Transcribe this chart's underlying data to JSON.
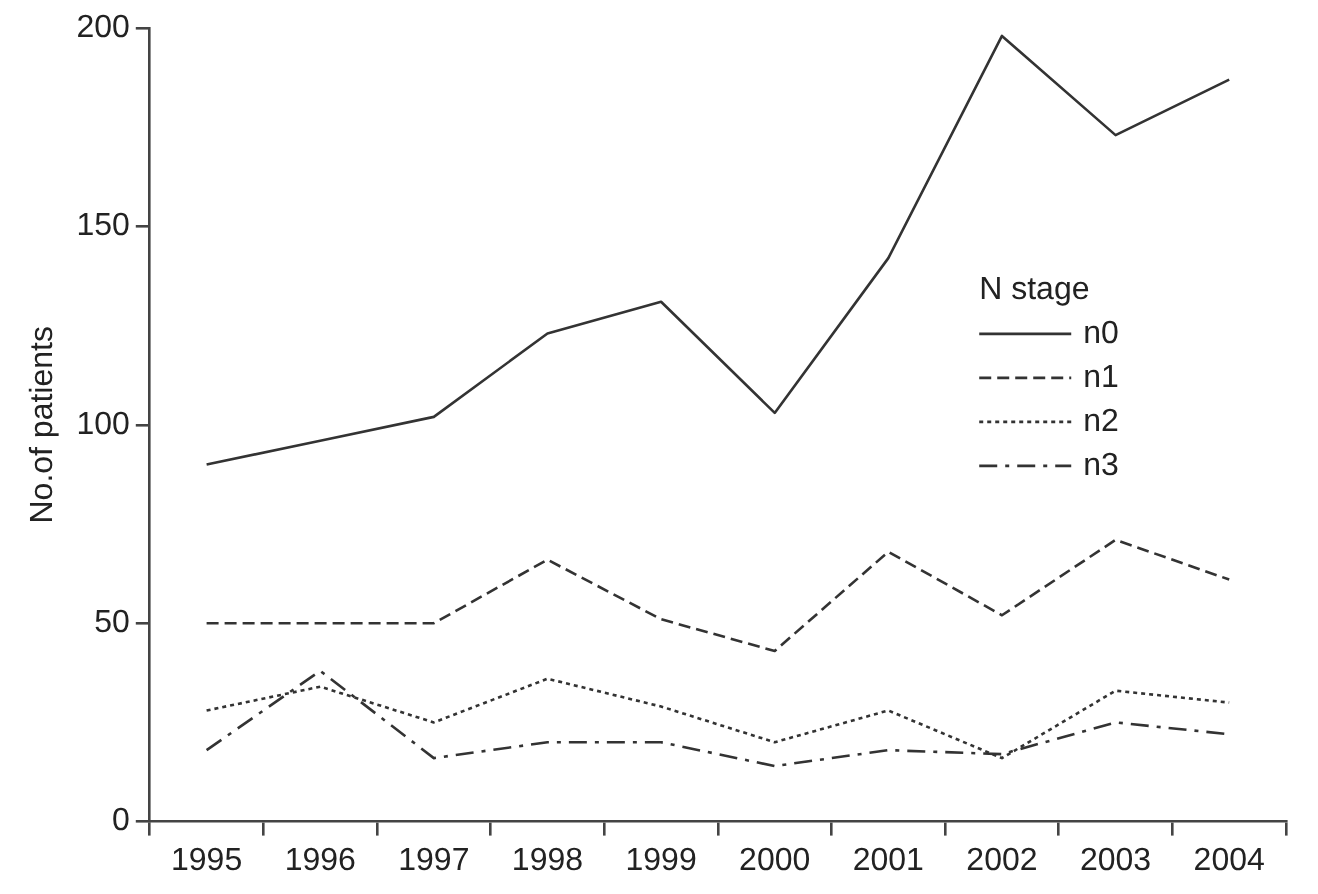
{
  "chart_data": {
    "type": "line",
    "ylabel": "No.of patients",
    "legend_title": "N stage",
    "legend": "right",
    "grid": false,
    "marker": "none",
    "categories": [
      "1995",
      "1996",
      "1997",
      "1998",
      "1999",
      "2000",
      "2001",
      "2002",
      "2003",
      "2004"
    ],
    "ylim": [
      0,
      200
    ],
    "yticks": [
      0,
      50,
      100,
      150,
      200
    ],
    "series": [
      {
        "name": "n0",
        "color": "#333333",
        "line_style": "solid",
        "values": [
          90,
          96,
          102,
          123,
          131,
          103,
          142,
          198,
          173,
          187
        ]
      },
      {
        "name": "n1",
        "color": "#333333",
        "line_style": "dashed",
        "values": [
          50,
          50,
          50,
          66,
          51,
          43,
          68,
          52,
          71,
          61
        ]
      },
      {
        "name": "n2",
        "color": "#333333",
        "line_style": "dotted",
        "values": [
          28,
          34,
          25,
          36,
          29,
          20,
          28,
          16,
          33,
          30
        ]
      },
      {
        "name": "n3",
        "color": "#333333",
        "line_style": "dashdot",
        "values": [
          18,
          38,
          16,
          20,
          20,
          14,
          18,
          17,
          25,
          22
        ]
      }
    ]
  }
}
